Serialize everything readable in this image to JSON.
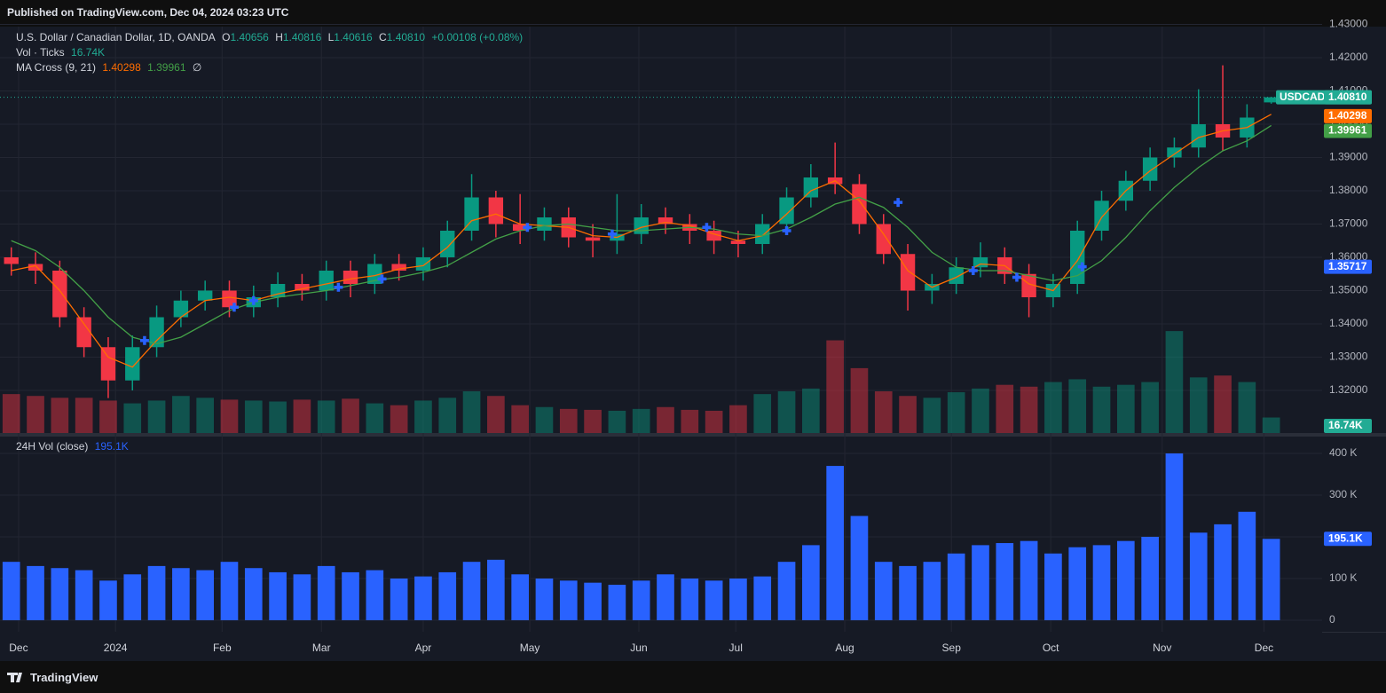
{
  "published": "Published on TradingView.com, Dec 04, 2024 03:23 UTC",
  "brand": "TradingView",
  "chart_data": {
    "type": "candlestick",
    "title": "U.S. Dollar / Canadian Dollar, 1D, OANDA",
    "ohlc_keys": [
      "O",
      "H",
      "L",
      "C"
    ],
    "change": "+0.00108 (+0.08%)",
    "xlim": [
      -0.1,
      54.1
    ],
    "xticks": [
      {
        "value": 0.3,
        "label": "Dec"
      },
      {
        "value": 4.3,
        "label": "2024"
      },
      {
        "value": 8.7,
        "label": "Feb"
      },
      {
        "value": 12.8,
        "label": "Mar"
      },
      {
        "value": 17.0,
        "label": "Apr"
      },
      {
        "value": 21.4,
        "label": "May"
      },
      {
        "value": 25.9,
        "label": "Jun"
      },
      {
        "value": 29.9,
        "label": "Jul"
      },
      {
        "value": 34.4,
        "label": "Aug"
      },
      {
        "value": 38.8,
        "label": "Sep"
      },
      {
        "value": 42.9,
        "label": "Oct"
      },
      {
        "value": 47.5,
        "label": "Nov"
      },
      {
        "value": 51.7,
        "label": "Dec"
      }
    ],
    "ylim": [
      1.3072,
      1.42933
    ],
    "yticks": [
      {
        "value": 1.32,
        "label": "1.32000"
      },
      {
        "value": 1.33,
        "label": "1.33000"
      },
      {
        "value": 1.34,
        "label": "1.34000"
      },
      {
        "value": 1.35,
        "label": "1.35000"
      },
      {
        "value": 1.36,
        "label": "1.36000"
      },
      {
        "value": 1.37,
        "label": "1.37000"
      },
      {
        "value": 1.38,
        "label": "1.38000"
      },
      {
        "value": 1.39,
        "label": "1.39000"
      },
      {
        "value": 1.4,
        "label": "1.40000"
      },
      {
        "value": 1.41,
        "label": "1.41000"
      },
      {
        "value": 1.42,
        "label": "1.42000"
      },
      {
        "value": 1.43,
        "label": "1.43000"
      }
    ],
    "grid": true,
    "candles": {
      "name": "USDCAD",
      "up_color": "#089981",
      "down_color": "#f23645",
      "close_label": "1.40810",
      "open": [
        1.36,
        1.358,
        1.356,
        1.342,
        1.333,
        1.323,
        1.333,
        1.342,
        1.347,
        1.35,
        1.345,
        1.348,
        1.352,
        1.35,
        1.356,
        1.352,
        1.358,
        1.356,
        1.36,
        1.368,
        1.378,
        1.37,
        1.368,
        1.372,
        1.366,
        1.365,
        1.367,
        1.372,
        1.37,
        1.368,
        1.365,
        1.364,
        1.37,
        1.378,
        1.384,
        1.382,
        1.37,
        1.361,
        1.35,
        1.352,
        1.357,
        1.36,
        1.355,
        1.348,
        1.352,
        1.368,
        1.377,
        1.383,
        1.39,
        1.393,
        1.4,
        1.396,
        1.40656
      ],
      "high": [
        1.363,
        1.3615,
        1.359,
        1.345,
        1.336,
        1.3365,
        1.3455,
        1.35,
        1.353,
        1.353,
        1.3515,
        1.3555,
        1.355,
        1.359,
        1.359,
        1.361,
        1.361,
        1.363,
        1.371,
        1.385,
        1.38,
        1.379,
        1.375,
        1.375,
        1.37,
        1.379,
        1.376,
        1.375,
        1.373,
        1.371,
        1.368,
        1.373,
        1.381,
        1.388,
        1.3945,
        1.385,
        1.373,
        1.364,
        1.355,
        1.36,
        1.3645,
        1.363,
        1.358,
        1.355,
        1.371,
        1.38,
        1.386,
        1.393,
        1.396,
        1.4105,
        1.4177,
        1.406,
        1.40816
      ],
      "low": [
        1.3545,
        1.352,
        1.339,
        1.33,
        1.3177,
        1.32,
        1.33,
        1.339,
        1.344,
        1.342,
        1.342,
        1.345,
        1.347,
        1.347,
        1.348,
        1.349,
        1.353,
        1.353,
        1.357,
        1.365,
        1.366,
        1.364,
        1.365,
        1.363,
        1.36,
        1.361,
        1.364,
        1.367,
        1.364,
        1.361,
        1.36,
        1.361,
        1.367,
        1.375,
        1.379,
        1.367,
        1.358,
        1.344,
        1.346,
        1.349,
        1.354,
        1.352,
        1.342,
        1.345,
        1.349,
        1.365,
        1.374,
        1.38,
        1.387,
        1.39,
        1.392,
        1.393,
        1.40616
      ],
      "close": [
        1.358,
        1.356,
        1.342,
        1.333,
        1.323,
        1.333,
        1.342,
        1.347,
        1.35,
        1.345,
        1.348,
        1.352,
        1.35,
        1.356,
        1.352,
        1.358,
        1.356,
        1.36,
        1.368,
        1.378,
        1.37,
        1.368,
        1.372,
        1.366,
        1.365,
        1.367,
        1.372,
        1.37,
        1.368,
        1.365,
        1.364,
        1.37,
        1.378,
        1.384,
        1.382,
        1.37,
        1.361,
        1.35,
        1.352,
        1.357,
        1.36,
        1.355,
        1.348,
        1.352,
        1.368,
        1.377,
        1.383,
        1.39,
        1.393,
        1.4,
        1.396,
        1.402,
        1.4081
      ]
    },
    "volume": {
      "title": "Vol · Ticks",
      "ylim": [
        0,
        180000
      ],
      "last_label": "16.74K",
      "values": [
        42000,
        40000,
        38000,
        38000,
        35000,
        32000,
        35000,
        40000,
        38000,
        36000,
        35000,
        34000,
        36000,
        35000,
        37000,
        32000,
        30000,
        35000,
        38000,
        45000,
        40000,
        30000,
        28000,
        26000,
        25000,
        24000,
        26000,
        28000,
        25000,
        24000,
        30000,
        42000,
        45000,
        48000,
        100000,
        70000,
        45000,
        40000,
        38000,
        44000,
        48000,
        52000,
        50000,
        55000,
        58000,
        50000,
        52000,
        55000,
        110000,
        60000,
        62000,
        55000,
        16740
      ]
    },
    "ma_cross": {
      "title": "MA Cross (9, 21)",
      "null_symbol": "∅",
      "fast": {
        "color": "#ff6d00",
        "values": [
          1.356,
          1.3575,
          1.35,
          1.34,
          1.33,
          1.327,
          1.335,
          1.342,
          1.347,
          1.348,
          1.347,
          1.349,
          1.3505,
          1.352,
          1.3535,
          1.3545,
          1.3565,
          1.3575,
          1.363,
          1.371,
          1.373,
          1.37,
          1.3695,
          1.369,
          1.3665,
          1.366,
          1.369,
          1.3705,
          1.3695,
          1.367,
          1.365,
          1.3665,
          1.373,
          1.38,
          1.383,
          1.377,
          1.367,
          1.356,
          1.351,
          1.354,
          1.358,
          1.3575,
          1.352,
          1.35,
          1.359,
          1.372,
          1.38,
          1.386,
          1.391,
          1.396,
          1.398,
          1.399,
          1.40298
        ]
      },
      "slow": {
        "color": "#43a047",
        "values": [
          1.365,
          1.362,
          1.357,
          1.35,
          1.342,
          1.336,
          1.334,
          1.336,
          1.34,
          1.344,
          1.3465,
          1.348,
          1.349,
          1.35,
          1.3515,
          1.353,
          1.354,
          1.3555,
          1.3575,
          1.3615,
          1.3655,
          1.368,
          1.3695,
          1.37,
          1.369,
          1.368,
          1.368,
          1.3685,
          1.369,
          1.3685,
          1.367,
          1.3665,
          1.3685,
          1.372,
          1.376,
          1.378,
          1.375,
          1.369,
          1.3615,
          1.357,
          1.356,
          1.356,
          1.3545,
          1.353,
          1.3545,
          1.359,
          1.366,
          1.374,
          1.381,
          1.387,
          1.392,
          1.395,
          1.39961
        ]
      },
      "markers": {
        "color": "#2962ff",
        "x": [
          5.5,
          9.2,
          10.0,
          13.5,
          15.3,
          21.3,
          24.8,
          28.7,
          32.0,
          36.6,
          39.7,
          41.5,
          44.2
        ],
        "y": [
          1.335,
          1.345,
          1.347,
          1.351,
          1.3535,
          1.369,
          1.367,
          1.369,
          1.368,
          1.3765,
          1.356,
          1.354,
          1.35717
        ]
      }
    },
    "volume_24h": {
      "title": "24H Vol (close)",
      "color": "#2962ff",
      "last_label": "195.1K",
      "ylim": [
        -27700,
        440400
      ],
      "yticks": [
        0,
        {
          "value": 100000,
          "label": "100 K"
        },
        {
          "value": 200000,
          "label": "200 K"
        },
        {
          "value": 300000,
          "label": "300 K"
        },
        {
          "value": 400000,
          "label": "400 K"
        }
      ],
      "values": [
        140000,
        130000,
        125000,
        120000,
        95000,
        110000,
        130000,
        125000,
        120000,
        140000,
        125000,
        115000,
        110000,
        130000,
        115000,
        120000,
        100000,
        105000,
        115000,
        140000,
        145000,
        110000,
        100000,
        95000,
        90000,
        85000,
        95000,
        110000,
        100000,
        95000,
        100000,
        105000,
        140000,
        180000,
        370000,
        250000,
        140000,
        130000,
        140000,
        160000,
        180000,
        185000,
        190000,
        160000,
        175000,
        180000,
        190000,
        200000,
        400000,
        210000,
        230000,
        260000,
        195100
      ]
    }
  }
}
